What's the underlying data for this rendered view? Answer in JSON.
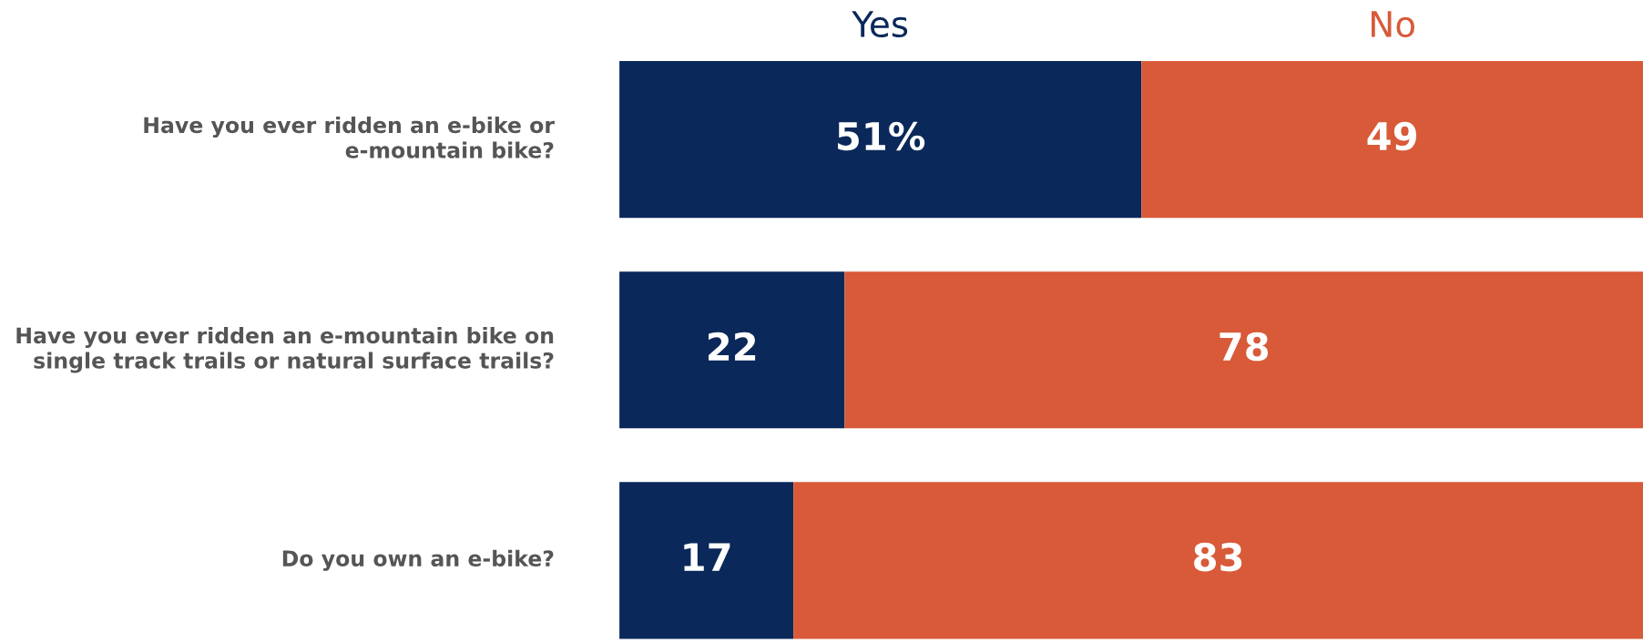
{
  "chart_data": {
    "type": "bar",
    "orientation": "horizontal",
    "stacked": true,
    "legend": "top",
    "tick_labels": "y",
    "xlim": [
      0,
      100
    ],
    "categories": [
      "Have you ever ridden an e-bike or e-mountain bike?",
      "Have you ever ridden an e-mountain bike on single track trails or natural surface trails?",
      "Do you own an e-bike?"
    ],
    "series": [
      {
        "name": "Yes",
        "color": "#0a2859",
        "values": [
          51,
          22,
          17
        ],
        "value_labels": [
          "51%",
          "22",
          "17"
        ]
      },
      {
        "name": "No",
        "color": "#d85a38",
        "values": [
          49,
          78,
          83
        ],
        "value_labels": [
          "49",
          "78",
          "83"
        ]
      }
    ]
  }
}
